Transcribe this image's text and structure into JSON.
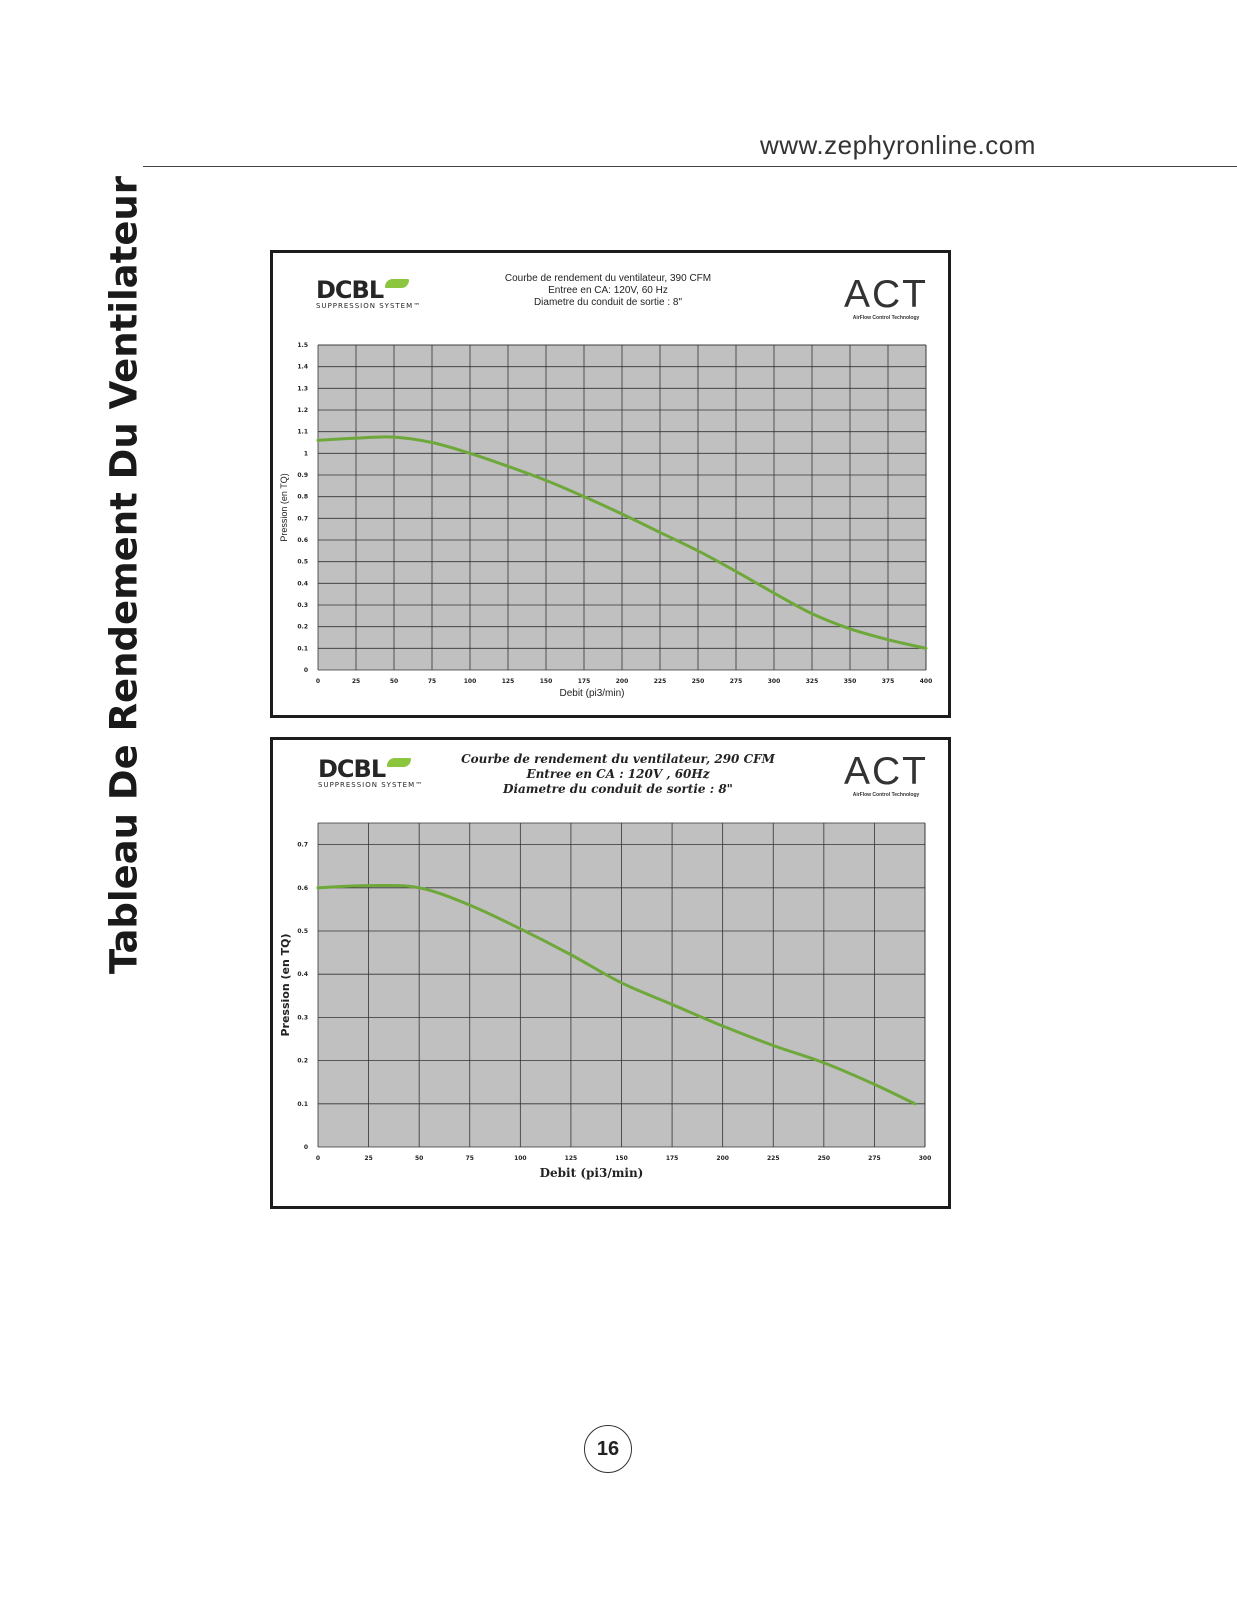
{
  "header": {
    "url": "www.zephyronline.com",
    "side_title": "Tableau De Rendement Du Ventilateur"
  },
  "page_number": "16",
  "colors": {
    "curve": "#6ea73a",
    "plot_bg": "#c0c0c0",
    "grid": "#333333"
  },
  "chart_data": [
    {
      "type": "line",
      "logo_left": {
        "name": "DCBL",
        "sub": "SUPPRESSION SYSTEM™"
      },
      "logo_right": {
        "name": "ACT",
        "sub": "AirFlow Control Technology"
      },
      "title_lines": [
        "Courbe de rendement du ventilateur, 390 CFM",
        "Entree en CA: 120V, 60 Hz",
        "Diametre du conduit de sortie : 8\""
      ],
      "xlabel": "Debit (pi3/min)",
      "ylabel": "Pression (en TQ)",
      "xlim": [
        0,
        400
      ],
      "ylim": [
        0,
        1.5
      ],
      "xticks": [
        "0",
        "25",
        "50",
        "75",
        "100",
        "125",
        "150",
        "175",
        "200",
        "225",
        "250",
        "275",
        "300",
        "325",
        "350",
        "375",
        "400"
      ],
      "yticks": [
        "0",
        "0.1",
        "0.2",
        "0.3",
        "0.4",
        "0.5",
        "0.6",
        "0.7",
        "0.8",
        "0.9",
        "1",
        "1.1",
        "1.2",
        "1.3",
        "1.4",
        "1.5"
      ],
      "grid": true,
      "series": [
        {
          "x": [
            0,
            25,
            50,
            75,
            100,
            125,
            150,
            175,
            200,
            225,
            250,
            275,
            300,
            325,
            350,
            375,
            400
          ],
          "y": [
            1.06,
            1.07,
            1.075,
            1.05,
            1.0,
            0.94,
            0.875,
            0.8,
            0.72,
            0.635,
            0.55,
            0.455,
            0.355,
            0.26,
            0.19,
            0.14,
            0.1
          ]
        }
      ]
    },
    {
      "type": "line",
      "logo_left": {
        "name": "DCBL",
        "sub": "SUPPRESSION SYSTEM™"
      },
      "logo_right": {
        "name": "ACT",
        "sub": "AirFlow Control Technology"
      },
      "title_lines": [
        "Courbe de rendement du ventilateur, 290 CFM",
        "Entree en CA : 120V , 60Hz",
        "Diametre du conduit de sortie : 8\""
      ],
      "xlabel": "Debit (pi3/min)",
      "ylabel": "Pression (en TQ)",
      "xlim": [
        0,
        300
      ],
      "ylim": [
        0,
        0.75
      ],
      "xticks": [
        "0",
        "25",
        "50",
        "75",
        "100",
        "125",
        "150",
        "175",
        "200",
        "225",
        "250",
        "275",
        "300"
      ],
      "yticks": [
        "0",
        "0.1",
        "0.2",
        "0.3",
        "0.4",
        "0.5",
        "0.6",
        "0.7"
      ],
      "grid": true,
      "series": [
        {
          "x": [
            0,
            25,
            50,
            75,
            100,
            125,
            150,
            175,
            200,
            225,
            250,
            275,
            295
          ],
          "y": [
            0.6,
            0.605,
            0.6,
            0.56,
            0.505,
            0.445,
            0.38,
            0.33,
            0.28,
            0.235,
            0.195,
            0.145,
            0.1
          ]
        }
      ]
    }
  ]
}
